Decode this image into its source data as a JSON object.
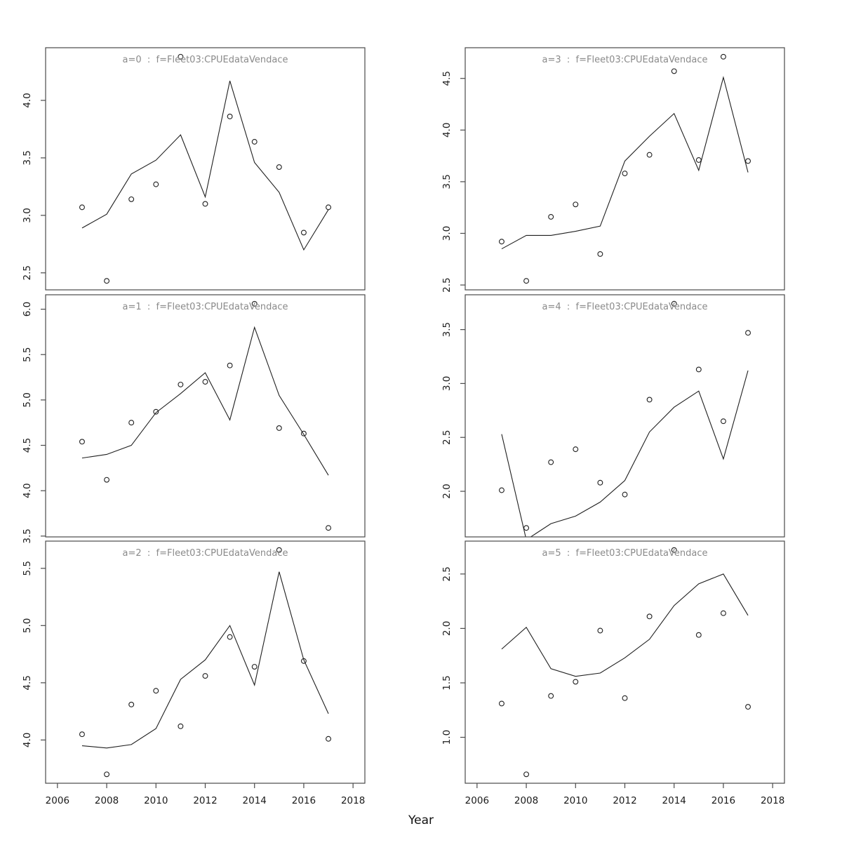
{
  "figure": {
    "xlabel": "Year",
    "background": "#ffffff",
    "frame_color": "#4a4a4a",
    "data_color": "#1f1f1f",
    "title_color": "#8a8a8a",
    "tick_text_color": "#1a1a1a",
    "x_ticks": [
      2006,
      2008,
      2010,
      2012,
      2014,
      2016,
      2018
    ],
    "xlim": [
      2005.52,
      2018.48
    ],
    "years": [
      2007,
      2008,
      2009,
      2010,
      2011,
      2012,
      2013,
      2014,
      2015,
      2016,
      2017
    ]
  },
  "chart_data": [
    {
      "id": "a0",
      "type": "line",
      "title": "a=0  :  f=Fleet03:CPUEdataVendace",
      "x": [
        2007,
        2008,
        2009,
        2010,
        2011,
        2012,
        2013,
        2014,
        2015,
        2016,
        2017
      ],
      "ylim": [
        2.352,
        4.458
      ],
      "y_ticks": [
        2.5,
        3.0,
        3.5,
        4.0
      ],
      "series": [
        {
          "name": "fitted-line",
          "kind": "line",
          "values": [
            2.89,
            3.01,
            3.36,
            3.48,
            3.7,
            3.16,
            4.17,
            3.46,
            3.2,
            2.7,
            3.05
          ]
        },
        {
          "name": "observed-points",
          "kind": "scatter",
          "values": [
            3.07,
            2.43,
            3.14,
            3.27,
            4.38,
            3.1,
            3.86,
            3.64,
            3.42,
            2.85,
            3.07
          ]
        }
      ]
    },
    {
      "id": "a1",
      "type": "line",
      "title": "a=1  :  f=Fleet03:CPUEdataVendace",
      "x": [
        2007,
        2008,
        2009,
        2010,
        2011,
        2012,
        2013,
        2014,
        2015,
        2016,
        2017
      ],
      "ylim": [
        3.491,
        6.159
      ],
      "y_ticks": [
        3.5,
        4.0,
        4.5,
        5.0,
        5.5,
        6.0
      ],
      "series": [
        {
          "name": "fitted-line",
          "kind": "line",
          "values": [
            4.36,
            4.4,
            4.5,
            4.86,
            5.07,
            5.3,
            4.78,
            5.8,
            5.05,
            4.62,
            4.17
          ]
        },
        {
          "name": "observed-points",
          "kind": "scatter",
          "values": [
            4.54,
            4.12,
            4.75,
            4.87,
            5.17,
            5.2,
            5.38,
            6.06,
            4.69,
            4.63,
            3.59
          ]
        }
      ]
    },
    {
      "id": "a2",
      "type": "line",
      "title": "a=2  :  f=Fleet03:CPUEdataVendace",
      "x": [
        2007,
        2008,
        2009,
        2010,
        2011,
        2012,
        2013,
        2014,
        2015,
        2016,
        2017
      ],
      "ylim": [
        3.622,
        5.738
      ],
      "y_ticks": [
        4.0,
        4.5,
        5.0,
        5.5
      ],
      "series": [
        {
          "name": "fitted-line",
          "kind": "line",
          "values": [
            3.95,
            3.93,
            3.96,
            4.1,
            4.53,
            4.7,
            5.0,
            4.48,
            5.47,
            4.7,
            4.23
          ]
        },
        {
          "name": "observed-points",
          "kind": "scatter",
          "values": [
            4.05,
            3.7,
            4.31,
            4.43,
            4.12,
            4.56,
            4.9,
            4.64,
            5.66,
            4.69,
            4.01
          ]
        }
      ]
    },
    {
      "id": "a3",
      "type": "line",
      "title": "a=3  :  f=Fleet03:CPUEdataVendace",
      "x": [
        2007,
        2008,
        2009,
        2010,
        2011,
        2012,
        2013,
        2014,
        2015,
        2016,
        2017
      ],
      "ylim": [
        2.453,
        4.797
      ],
      "y_ticks": [
        2.5,
        3.0,
        3.5,
        4.0,
        4.5
      ],
      "series": [
        {
          "name": "fitted-line",
          "kind": "line",
          "values": [
            2.85,
            2.98,
            2.98,
            3.02,
            3.07,
            3.7,
            3.94,
            4.16,
            3.61,
            4.51,
            3.59
          ]
        },
        {
          "name": "observed-points",
          "kind": "scatter",
          "values": [
            2.92,
            2.54,
            3.16,
            3.28,
            2.8,
            3.58,
            3.76,
            4.57,
            3.71,
            4.71,
            3.7
          ]
        }
      ]
    },
    {
      "id": "a4",
      "type": "line",
      "title": "a=4  :  f=Fleet03:CPUEdataVendace",
      "x": [
        2007,
        2008,
        2009,
        2010,
        2011,
        2012,
        2013,
        2014,
        2015,
        2016,
        2017
      ],
      "ylim": [
        1.577,
        3.823
      ],
      "y_ticks": [
        2.0,
        2.5,
        3.0,
        3.5
      ],
      "series": [
        {
          "name": "fitted-line",
          "kind": "line",
          "values": [
            2.53,
            1.55,
            1.7,
            1.77,
            1.9,
            2.1,
            2.55,
            2.78,
            2.93,
            2.3,
            3.12
          ]
        },
        {
          "name": "observed-points",
          "kind": "scatter",
          "values": [
            2.01,
            1.66,
            2.27,
            2.39,
            2.08,
            1.97,
            2.85,
            3.74,
            3.13,
            2.65,
            3.47
          ]
        }
      ]
    },
    {
      "id": "a5",
      "type": "line",
      "title": "a=5  :  f=Fleet03:CPUEdataVendace",
      "x": [
        2007,
        2008,
        2009,
        2010,
        2011,
        2012,
        2013,
        2014,
        2015,
        2016,
        2017
      ],
      "ylim": [
        0.578,
        2.802
      ],
      "y_ticks": [
        1.0,
        1.5,
        2.0,
        2.5
      ],
      "series": [
        {
          "name": "fitted-line",
          "kind": "line",
          "values": [
            1.81,
            2.01,
            1.63,
            1.56,
            1.59,
            1.73,
            1.9,
            2.21,
            2.41,
            2.5,
            2.12
          ]
        },
        {
          "name": "observed-points",
          "kind": "scatter",
          "values": [
            1.31,
            0.66,
            1.38,
            1.51,
            1.98,
            1.36,
            2.11,
            2.72,
            1.94,
            2.14,
            1.28
          ]
        }
      ]
    }
  ]
}
